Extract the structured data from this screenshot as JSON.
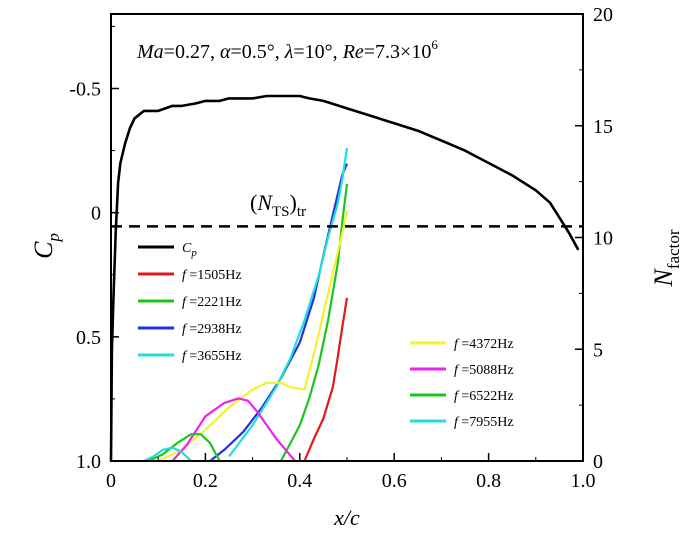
{
  "chart_data": {
    "type": "line",
    "title": {
      "parts": [
        {
          "text": "Ma",
          "italic": true
        },
        {
          "text": "=0.27, ",
          "italic": false
        },
        {
          "text": "α",
          "italic": true
        },
        {
          "text": "=0.5°, ",
          "italic": false
        },
        {
          "text": "λ",
          "italic": true
        },
        {
          "text": "=10°, ",
          "italic": false
        },
        {
          "text": "Re",
          "italic": true
        },
        {
          "text": "=7.3×10",
          "italic": false
        },
        {
          "text": "6",
          "italic": false,
          "superscript": true
        }
      ]
    },
    "xlabel": "x/c",
    "ylabel_left": {
      "main": "C",
      "sub": "p"
    },
    "ylabel_right": {
      "main": "N",
      "sub": "factor"
    },
    "xlim": [
      0,
      1
    ],
    "ylim_left": [
      1.0,
      -0.8
    ],
    "ylim_right": [
      0,
      20
    ],
    "x_ticks": [
      "0",
      "0.2",
      "0.4",
      "0.6",
      "0.8",
      "1.0"
    ],
    "y_left_ticks": [
      "-0.5",
      "0",
      "0.5",
      "1.0"
    ],
    "y_right_ticks": [
      "0",
      "5",
      "10",
      "15",
      "20"
    ],
    "annotation": {
      "main": "(N",
      "sub": "TS",
      "close": ")",
      "sub2": "tr"
    },
    "threshold": {
      "axis": "right",
      "value": 10.5,
      "style": "dashed"
    },
    "cp_curve": {
      "name": "C_p",
      "x": [
        0.0,
        0.002,
        0.005,
        0.01,
        0.015,
        0.02,
        0.03,
        0.04,
        0.05,
        0.07,
        0.1,
        0.13,
        0.15,
        0.18,
        0.2,
        0.23,
        0.25,
        0.3,
        0.33,
        0.35,
        0.4,
        0.42,
        0.45,
        0.5,
        0.55,
        0.6,
        0.65,
        0.7,
        0.75,
        0.8,
        0.85,
        0.9,
        0.93,
        0.95,
        0.97,
        0.99
      ],
      "y": [
        1.0,
        0.55,
        0.35,
        0.08,
        -0.12,
        -0.2,
        -0.28,
        -0.34,
        -0.38,
        -0.41,
        -0.41,
        -0.43,
        -0.43,
        -0.44,
        -0.45,
        -0.45,
        -0.46,
        -0.46,
        -0.47,
        -0.47,
        -0.47,
        -0.46,
        -0.45,
        -0.42,
        -0.39,
        -0.36,
        -0.33,
        -0.29,
        -0.25,
        -0.2,
        -0.15,
        -0.09,
        -0.04,
        0.02,
        0.08,
        0.15
      ]
    },
    "legend_left": [
      {
        "label": "C",
        "sub": "p",
        "color": "#000000"
      },
      {
        "label": "f",
        "value": "=1505Hz",
        "color": "#e01a1a"
      },
      {
        "label": "f",
        "value": "=2221Hz",
        "color": "#1cc41c"
      },
      {
        "label": "f",
        "value": "=2938Hz",
        "color": "#2233dd"
      },
      {
        "label": "f",
        "value": "=3655Hz",
        "color": "#22dddd"
      }
    ],
    "legend_right": [
      {
        "label": "f",
        "value": "=4372Hz",
        "color": "#f2f230"
      },
      {
        "label": "f",
        "value": "=5088Hz",
        "color": "#ee22ee"
      },
      {
        "label": "f",
        "value": "=6522Hz",
        "color": "#1cc41c"
      },
      {
        "label": "f",
        "value": "=7955Hz",
        "color": "#22dddd"
      }
    ],
    "series": [
      {
        "name": "f=1505Hz",
        "color": "#e01a1a",
        "x": [
          0.41,
          0.43,
          0.45,
          0.47,
          0.48,
          0.49,
          0.5
        ],
        "y": [
          0,
          1.0,
          1.9,
          3.3,
          4.6,
          6.0,
          7.3
        ]
      },
      {
        "name": "f=2221Hz",
        "color": "#1cc41c",
        "x": [
          0.36,
          0.38,
          0.4,
          0.42,
          0.44,
          0.46,
          0.48,
          0.49,
          0.5
        ],
        "y": [
          0,
          0.8,
          1.6,
          2.8,
          4.3,
          6.3,
          8.8,
          10.7,
          12.4
        ]
      },
      {
        "name": "f=2938Hz",
        "color": "#2233dd",
        "x": [
          0.21,
          0.24,
          0.28,
          0.32,
          0.36,
          0.4,
          0.43,
          0.45,
          0.47,
          0.49,
          0.5
        ],
        "y": [
          0,
          0.5,
          1.3,
          2.4,
          3.7,
          5.3,
          7.3,
          9.2,
          11.0,
          12.8,
          13.3
        ]
      },
      {
        "name": "f=3655Hz",
        "color": "#22dddd",
        "x": [
          0.25,
          0.3,
          0.35,
          0.38,
          0.41,
          0.44,
          0.46,
          0.48,
          0.49,
          0.5
        ],
        "y": [
          0.2,
          1.6,
          3.3,
          4.6,
          6.3,
          8.3,
          10.0,
          11.5,
          12.6,
          14.0
        ]
      },
      {
        "name": "f=4372Hz",
        "color": "#f2f230",
        "x": [
          0.1,
          0.15,
          0.2,
          0.25,
          0.3,
          0.33,
          0.36,
          0.38,
          0.41,
          0.43,
          0.45,
          0.47,
          0.49,
          0.5
        ],
        "y": [
          0,
          0.5,
          1.4,
          2.4,
          3.2,
          3.5,
          3.5,
          3.3,
          3.2,
          4.8,
          6.6,
          8.4,
          10.2,
          11.2
        ]
      },
      {
        "name": "f=5088Hz",
        "color": "#ee22ee",
        "x": [
          0.13,
          0.16,
          0.2,
          0.24,
          0.27,
          0.29,
          0.31,
          0.33,
          0.35,
          0.37,
          0.39
        ],
        "y": [
          0,
          0.7,
          2.0,
          2.6,
          2.8,
          2.7,
          2.2,
          1.6,
          1.0,
          0.5,
          0
        ]
      },
      {
        "name": "f=6522Hz",
        "color": "#1cc41c",
        "x": [
          0.08,
          0.11,
          0.14,
          0.17,
          0.19,
          0.21,
          0.23
        ],
        "y": [
          0,
          0.3,
          0.8,
          1.2,
          1.2,
          0.8,
          0
        ]
      },
      {
        "name": "f=7955Hz",
        "color": "#22dddd",
        "x": [
          0.07,
          0.09,
          0.11,
          0.13,
          0.15,
          0.17
        ],
        "y": [
          0,
          0.2,
          0.5,
          0.6,
          0.4,
          0
        ]
      }
    ]
  }
}
